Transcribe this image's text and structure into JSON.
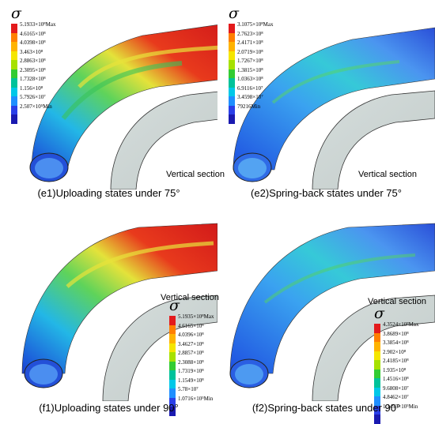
{
  "sigma_symbol": "σ",
  "legend_colors": [
    "#e31a1c",
    "#ff7f00",
    "#ffb300",
    "#f5e600",
    "#a6e100",
    "#33cc33",
    "#00c29a",
    "#00c8e8",
    "#1f8fff",
    "#2a3fe8",
    "#1a1ab0"
  ],
  "panels": [
    {
      "id": "e1",
      "caption": "(e1)Uploading states under 75°",
      "section_label": "Vertical section",
      "legend": {
        "labels": [
          "5.1933×10⁸Max",
          "4.6165×10⁸",
          "4.0398×10⁸",
          "3.463×10⁸",
          "2.8863×10⁸",
          "2.3095×10⁸",
          "1.7328×10⁸",
          "1.156×10⁸",
          "5.7926×10⁷",
          "2.507×10⁵Min"
        ]
      }
    },
    {
      "id": "e2",
      "caption": "(e2)Spring-back states under 75°",
      "section_label": "Vertical section",
      "legend": {
        "labels": [
          "3.1075×10⁸Max",
          "2.7623×10⁸",
          "2.4171×10⁸",
          "2.0719×10⁸",
          "1.7267×10⁸",
          "1.3815×10⁸",
          "1.0363×10⁸",
          "6.9116×10⁷",
          "3.4598×10⁷",
          "79216Min"
        ]
      }
    },
    {
      "id": "f1",
      "caption": "(f1)Uploading states under 90°",
      "section_label": "Vertical section",
      "legend": {
        "labels": [
          "5.1935×10⁸Max",
          "4.6165×10⁸",
          "4.0396×10⁸",
          "3.4627×10⁸",
          "2.8857×10⁸",
          "2.3088×10⁸",
          "1.7319×10⁸",
          "1.1549×10⁸",
          "5.78×10⁷",
          "1.0716×10⁵Min"
        ]
      }
    },
    {
      "id": "f2",
      "caption": "(f2)Spring-back states under 90°",
      "section_label": "Vertical section",
      "legend": {
        "labels": [
          "4.3524×10⁸Max",
          "3.8689×10⁸",
          "3.3854×10⁸",
          "2.902×10⁸",
          "2.4185×10⁸",
          "1.935×10⁸",
          "1.4516×10⁸",
          "9.6808×10⁷",
          "4.8462×10⁷",
          "1.1493×10⁵Min"
        ]
      }
    }
  ]
}
